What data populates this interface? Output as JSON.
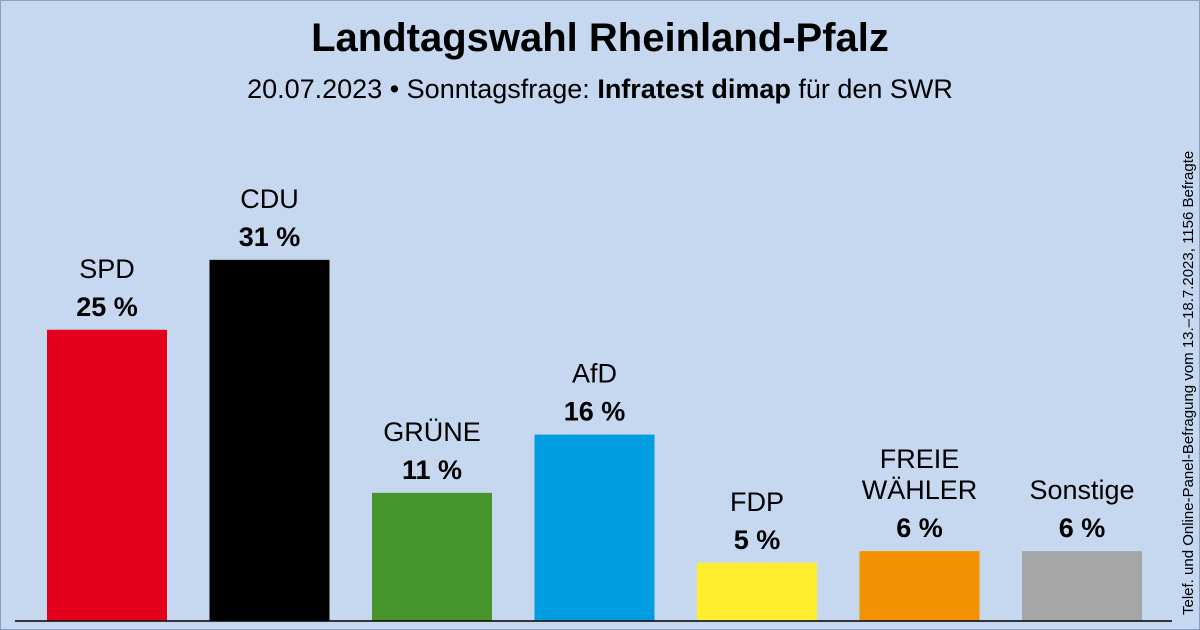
{
  "header": {
    "title": "Landtagswahl Rheinland-Pfalz",
    "subtitle_prefix": "20.07.2023 • Sonntagsfrage: ",
    "institute": "Infratest dimap",
    "subtitle_suffix": " für den SWR"
  },
  "side_note": "Telef. und Online-Panel-Befragung vom 13.–18.7.2023, 1156 Befragte",
  "chart_data": {
    "type": "bar",
    "title": "Landtagswahl Rheinland-Pfalz",
    "xlabel": "",
    "ylabel": "",
    "unit": "%",
    "categories": [
      "SPD",
      "CDU",
      "GRÜNE",
      "AfD",
      "FDP",
      "FREIE WÄHLER",
      "Sonstige"
    ],
    "values": [
      25,
      31,
      11,
      16,
      5,
      6,
      6
    ],
    "value_labels": [
      "25 %",
      "31 %",
      "11 %",
      "16 %",
      "5 %",
      "6 %",
      "6 %"
    ],
    "colors": [
      "#e2001a",
      "#000000",
      "#46962b",
      "#009ee0",
      "#ffed2e",
      "#f39200",
      "#a6a6a6"
    ],
    "grid": false,
    "legend": "none"
  }
}
